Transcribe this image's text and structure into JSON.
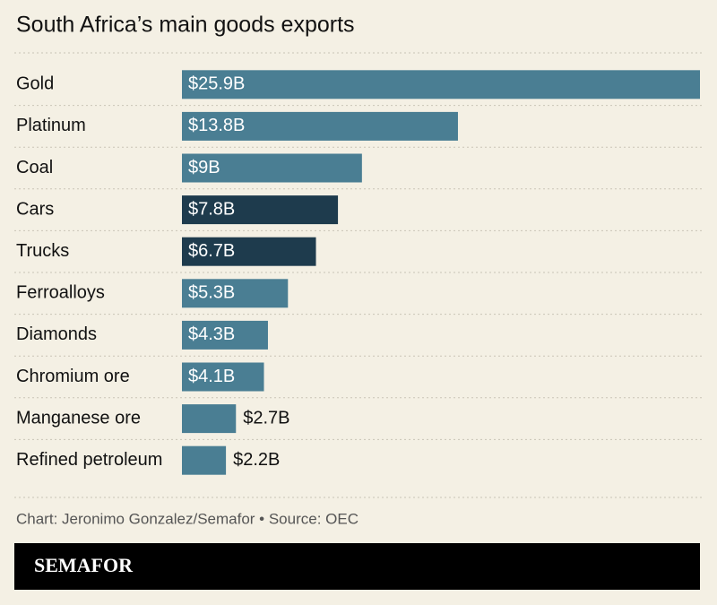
{
  "chart_data": {
    "type": "bar",
    "orientation": "horizontal",
    "title": "South Africa’s main goods exports",
    "categories": [
      "Gold",
      "Platinum",
      "Coal",
      "Cars",
      "Trucks",
      "Ferroalloys",
      "Diamonds",
      "Chromium ore",
      "Manganese ore",
      "Refined petroleum"
    ],
    "values": [
      25.9,
      13.8,
      9,
      7.8,
      6.7,
      5.3,
      4.3,
      4.1,
      2.7,
      2.2
    ],
    "value_labels": [
      "$25.9B",
      "$13.8B",
      "$9B",
      "$7.8B",
      "$6.7B",
      "$5.3B",
      "$4.3B",
      "$4.1B",
      "$2.7B",
      "$2.2B"
    ],
    "colors": [
      "#4a7e93",
      "#4a7e93",
      "#4a7e93",
      "#1e3b4d",
      "#1e3b4d",
      "#4a7e93",
      "#4a7e93",
      "#4a7e93",
      "#4a7e93",
      "#4a7e93"
    ]
  },
  "source": "Chart: Jeronimo Gonzalez/Semafor • Source: OEC",
  "brand": "SEMAFOR"
}
